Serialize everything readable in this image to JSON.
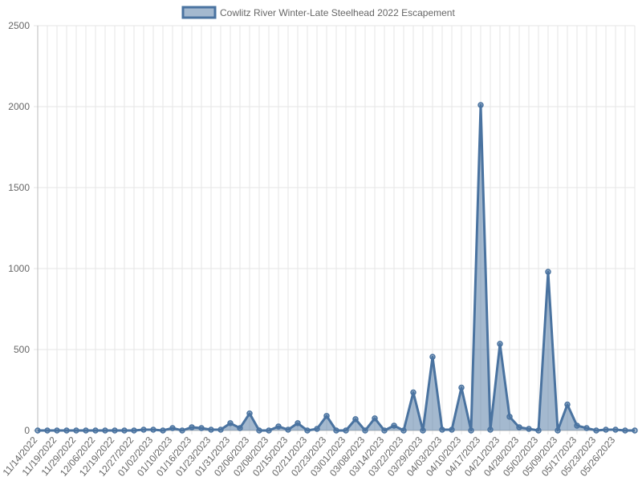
{
  "chart_data": {
    "type": "area",
    "legend_position": "top",
    "grid": true,
    "ylim": [
      0,
      2500
    ],
    "y_ticks": [
      0,
      500,
      1000,
      1500,
      2000,
      2500
    ],
    "series": [
      {
        "name": "Cowlitz River Winter-Late Steelhead 2022 Escapement",
        "color": "#4a73a0",
        "fill": "rgba(74,115,160,0.5)",
        "values": [
          0,
          0,
          0,
          0,
          0,
          0,
          0,
          0,
          0,
          0,
          0,
          5,
          5,
          0,
          15,
          0,
          20,
          15,
          5,
          5,
          45,
          15,
          105,
          0,
          0,
          25,
          5,
          45,
          0,
          10,
          90,
          0,
          0,
          70,
          0,
          75,
          0,
          30,
          0,
          235,
          0,
          455,
          5,
          5,
          265,
          0,
          2010,
          5,
          535,
          85,
          20,
          10,
          0,
          980,
          0,
          160,
          30,
          15,
          0,
          5,
          5,
          0,
          0
        ]
      }
    ],
    "x_tick_labels": [
      "11/14/2022",
      "11/19/2022",
      "11/29/2022",
      "12/06/2022",
      "12/19/2022",
      "12/27/2022",
      "01/02/2023",
      "01/10/2023",
      "01/16/2023",
      "01/23/2023",
      "01/31/2023",
      "02/06/2023",
      "02/08/2023",
      "02/15/2023",
      "02/21/2023",
      "02/23/2023",
      "03/01/2023",
      "03/08/2023",
      "03/14/2023",
      "03/22/2023",
      "03/29/2023",
      "04/03/2023",
      "04/10/2023",
      "04/17/2023",
      "04/21/2023",
      "04/28/2023",
      "05/02/2023",
      "05/09/2023",
      "05/17/2023",
      "05/23/2023",
      "05/26/2023"
    ]
  }
}
